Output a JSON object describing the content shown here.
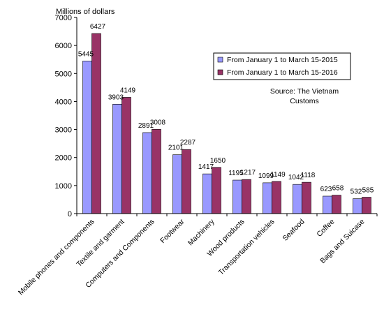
{
  "chart_data": {
    "type": "bar",
    "ylabel": "Millions of dollars",
    "ylim": [
      0,
      7000
    ],
    "yticks": [
      0,
      1000,
      2000,
      3000,
      4000,
      5000,
      6000,
      7000
    ],
    "grid": false,
    "legend_position": "top-right",
    "categories": [
      "Mobile phones and components",
      "Textile and garment",
      "Computers and Components",
      "Footwear",
      "Machinery",
      "Wood products",
      "Transportation vehicles",
      "Seafood",
      "Coffee",
      "Bags and Suicase"
    ],
    "series": [
      {
        "name": "From January 1 to March 15-2015",
        "color": "#9999ff",
        "values": [
          5445,
          3903,
          2891,
          2101,
          1417,
          1195,
          1099,
          1042,
          623,
          532
        ]
      },
      {
        "name": "From January 1 to March 15-2016",
        "color": "#993366",
        "values": [
          6427,
          4149,
          3008,
          2287,
          1650,
          1217,
          1149,
          1118,
          658,
          585
        ]
      }
    ],
    "annotation": [
      "Source: The Vietnam",
      "Customs"
    ]
  }
}
